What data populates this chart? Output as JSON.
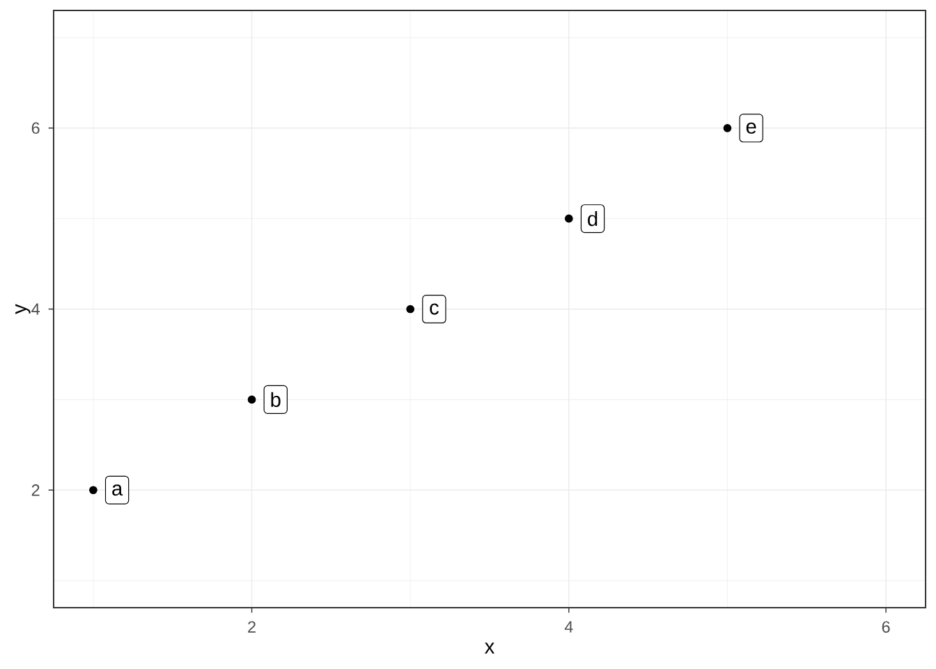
{
  "chart_data": {
    "type": "scatter",
    "xlabel": "x",
    "ylabel": "y",
    "x": [
      1,
      2,
      3,
      4,
      5
    ],
    "values": [
      2,
      3,
      4,
      5,
      6
    ],
    "color": "#000000",
    "marker": "circle",
    "xlim": [
      0.75,
      6.25
    ],
    "ylim": [
      0.7,
      7.3
    ],
    "xticks": [
      2,
      4,
      6
    ],
    "yticks": [
      2,
      4,
      6
    ],
    "grid": true,
    "annotations": [
      {
        "text": "a",
        "x": 1,
        "y": 2
      },
      {
        "text": "b",
        "x": 2,
        "y": 3
      },
      {
        "text": "c",
        "x": 3,
        "y": 4
      },
      {
        "text": "d",
        "x": 4,
        "y": 5
      },
      {
        "text": "e",
        "x": 5,
        "y": 6
      }
    ]
  }
}
